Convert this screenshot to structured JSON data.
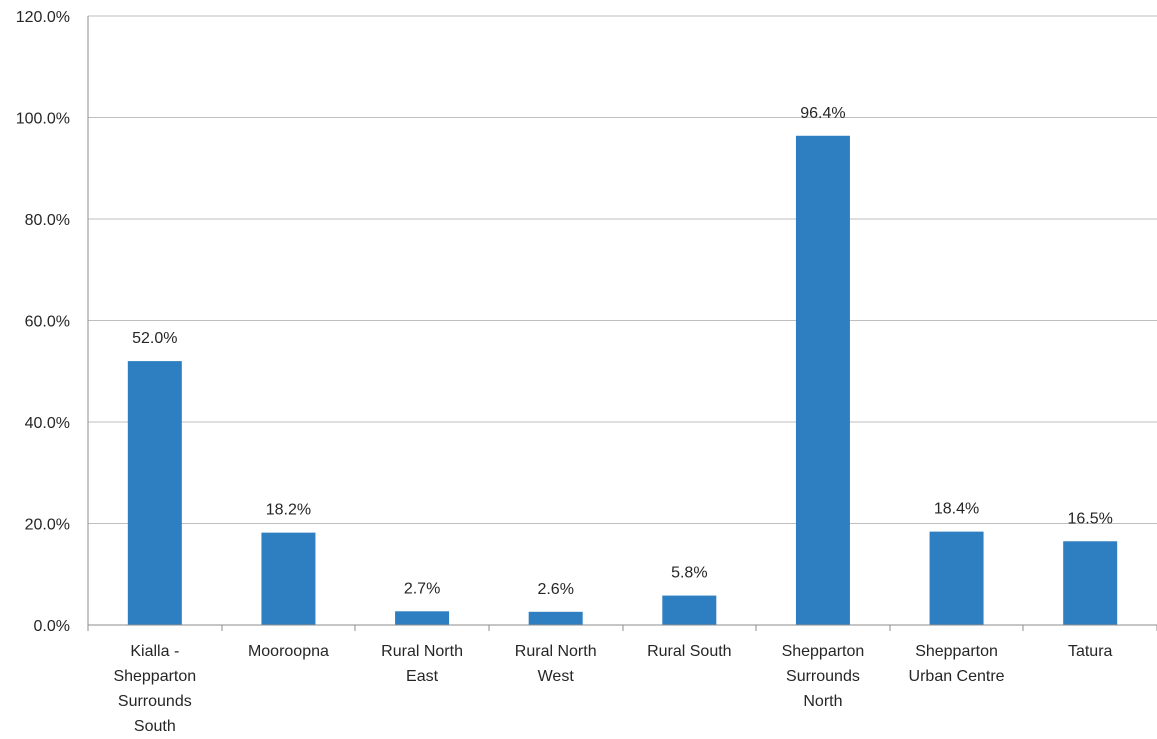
{
  "chart_data": {
    "type": "bar",
    "categories": [
      [
        "Kialla -",
        "Shepparton",
        "Surrounds",
        "South"
      ],
      [
        "Mooroopna"
      ],
      [
        "Rural North",
        "East"
      ],
      [
        "Rural North",
        "West"
      ],
      [
        "Rural South"
      ],
      [
        "Shepparton",
        "Surrounds",
        "North"
      ],
      [
        "Shepparton",
        "Urban Centre"
      ],
      [
        "Tatura"
      ]
    ],
    "values": [
      52.0,
      18.2,
      2.7,
      2.6,
      5.8,
      96.4,
      18.4,
      16.5
    ],
    "data_labels": [
      "52.0%",
      "18.2%",
      "2.7%",
      "2.6%",
      "5.8%",
      "96.4%",
      "18.4%",
      "16.5%"
    ],
    "title": "",
    "xlabel": "",
    "ylabel": "",
    "ylim": [
      0,
      120
    ],
    "yticks": [
      0,
      20,
      40,
      60,
      80,
      100,
      120
    ],
    "ytick_labels": [
      "0.0%",
      "20.0%",
      "40.0%",
      "60.0%",
      "80.0%",
      "100.0%",
      "120.0%"
    ],
    "grid": true,
    "legend": "none",
    "bar_color": "#2e7fc2",
    "grid_color": "#bfbfbf",
    "axis_color": "#8c8c8c"
  }
}
